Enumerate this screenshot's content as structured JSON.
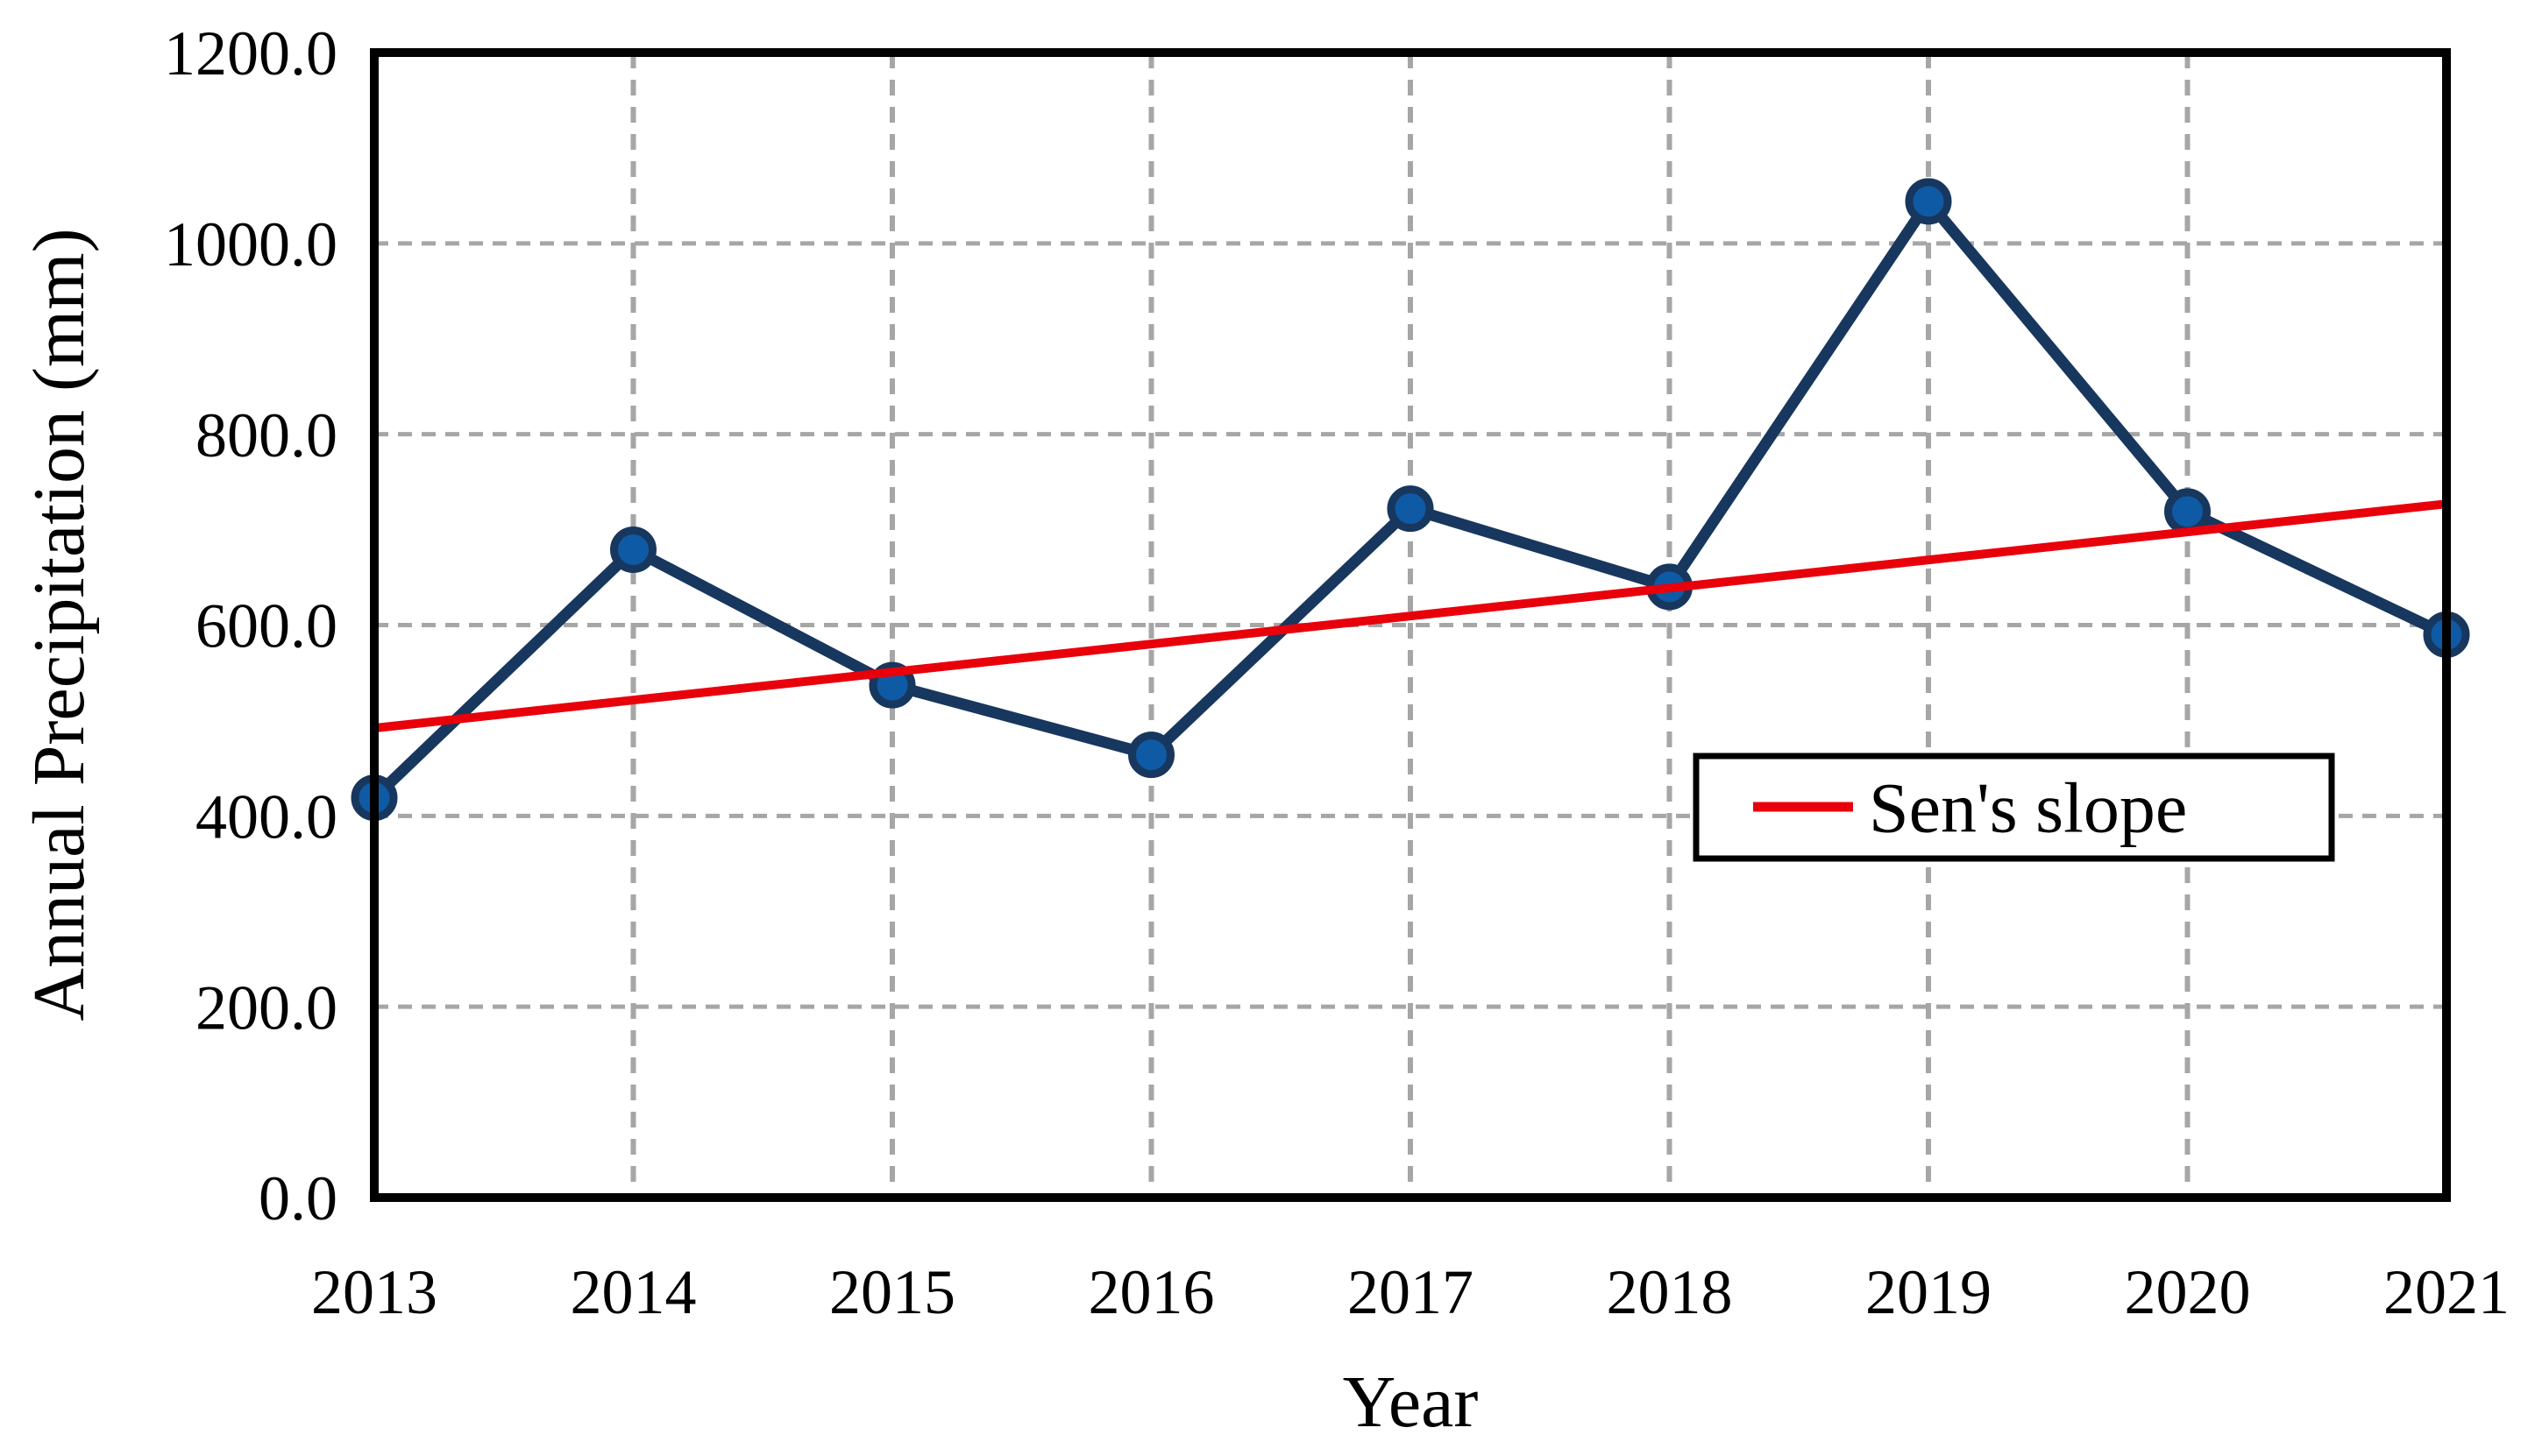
{
  "figure": {
    "background": "#FFFFFF",
    "frame_color": "#000000"
  },
  "chart_data": {
    "type": "line",
    "title": "",
    "xlabel": "Year",
    "ylabel": "Annual Precipitation (mm)",
    "x": [
      2013,
      2014,
      2015,
      2016,
      2017,
      2018,
      2019,
      2020,
      2021
    ],
    "series": [
      {
        "name": "Annual Precipitation",
        "style": "line+marker",
        "line_color": "#17375E",
        "marker_fill": "#0F5AA5",
        "marker_edge": "#17375E",
        "values": [
          419,
          679,
          537,
          464,
          722,
          640,
          1044,
          719,
          590
        ]
      },
      {
        "name": "Sen's slope",
        "style": "trendline",
        "color": "#E8000B",
        "start_value": 492,
        "end_value": 727
      }
    ],
    "ylim": [
      0,
      1200
    ],
    "yticks": [
      0,
      200,
      400,
      600,
      800,
      1000,
      1200
    ],
    "ytick_labels": [
      "0.0",
      "200.0",
      "400.0",
      "600.0",
      "800.0",
      "1000.0",
      "1200.0"
    ],
    "grid": {
      "style": "dashed",
      "color": "#A6A6A6"
    },
    "legend": {
      "label": "Sen's slope",
      "swatch_color": "#E8000B",
      "position": "inside lower right"
    }
  }
}
